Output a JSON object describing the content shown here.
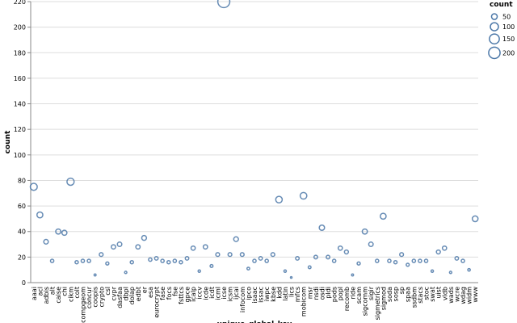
{
  "chart_data": {
    "type": "scatter",
    "x_label": "unique_global_key",
    "y_label": "count",
    "categories": [
      "aaai",
      "acl",
      "adbis",
      "alt",
      "caise",
      "chi",
      "cikm",
      "colt",
      "compgeom",
      "concur",
      "coopis",
      "crypto",
      "csl",
      "cvpr",
      "dasfaa",
      "dbpl",
      "dolap",
      "edbt",
      "er",
      "esa",
      "eurocrypt",
      "fase",
      "focs",
      "fse",
      "fsttcs",
      "gpce",
      "icalp",
      "iccv",
      "icde",
      "icdt",
      "icml",
      "icse",
      "icsm",
      "ijcai",
      "infocom",
      "ipco",
      "isaac",
      "issac",
      "iwpc",
      "kbse",
      "kdd",
      "latin",
      "lics",
      "mfcs",
      "mobicom",
      "msr",
      "nsdi",
      "osdi",
      "pldi",
      "pods",
      "popl",
      "recomb",
      "ride",
      "scam",
      "sigcomm",
      "sigir",
      "sigmetrics",
      "sigmod",
      "soda",
      "sosp",
      "sp",
      "spaa",
      "ssdbm",
      "stacs",
      "stoc",
      "swat",
      "uist",
      "vldb",
      "wads",
      "wcre",
      "wdag",
      "widm",
      "www"
    ],
    "values": [
      75,
      53,
      32,
      17,
      40,
      39,
      79,
      16,
      17,
      17,
      6,
      22,
      15,
      28,
      30,
      8,
      16,
      28,
      35,
      18,
      19,
      17,
      16,
      17,
      16,
      19,
      27,
      9,
      28,
      13,
      22,
      220,
      22,
      34,
      22,
      11,
      17,
      19,
      17,
      22,
      65,
      9,
      4,
      19,
      68,
      12,
      20,
      43,
      20,
      17,
      27,
      24,
      6,
      15,
      40,
      30,
      17,
      52,
      17,
      16,
      22,
      14,
      17,
      17,
      17,
      9,
      24,
      27,
      8,
      19,
      17,
      10,
      50
    ],
    "color": "#4c78a8",
    "ylim": [
      0,
      220
    ],
    "yticks": [
      0,
      20,
      40,
      60,
      80,
      100,
      120,
      140,
      160,
      180,
      200,
      220
    ],
    "grid": true,
    "legend": {
      "title": "count",
      "sizes": [
        50,
        100,
        150,
        200
      ],
      "position": "right"
    }
  }
}
